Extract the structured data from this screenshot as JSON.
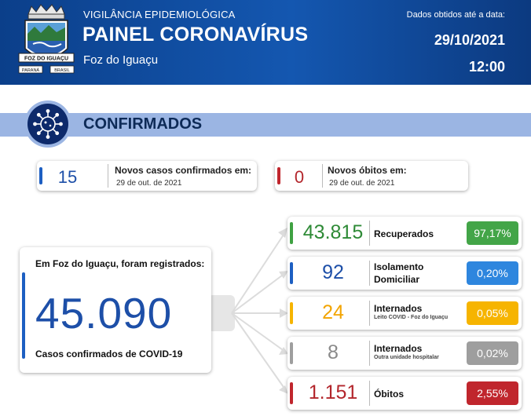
{
  "header": {
    "subtitle": "VIGILÂNCIA EPIDEMIOLÓGICA",
    "title": "PAINEL CORONAVÍRUS",
    "city": "Foz do Iguaçu",
    "date_label": "Dados obtidos até a data:",
    "date": "29/10/2021",
    "time": "12:00",
    "logo": {
      "banner": "FOZ DO IGUAÇU",
      "left": "PARANÁ",
      "right": "BRASIL"
    }
  },
  "section": {
    "title": "CONFIRMADOS",
    "icon": "virus-icon"
  },
  "new_cases": {
    "value": "15",
    "label": "Novos casos confirmados em:",
    "date": "29 de out. de 2021",
    "color": "#1d5fc2"
  },
  "new_deaths": {
    "value": "0",
    "label": "Novos óbitos em:",
    "date": "29 de out. de 2021",
    "color": "#c0262d"
  },
  "total": {
    "lead": "Em Foz do Iguaçu, foram registrados:",
    "value": "45.090",
    "footer": "Casos confirmados de COVID-19",
    "color": "#1d5fc2"
  },
  "breakdown": [
    {
      "value": "43.815",
      "label": "Recuperados",
      "label2": "",
      "sublabel": "",
      "pct": "97,17%",
      "color": "#3fa142",
      "value_color": "#2e8a36",
      "pct_color": "#43a548"
    },
    {
      "value": "92",
      "label": "Isolamento",
      "label2": "Domiciliar",
      "sublabel": "",
      "pct": "0,20%",
      "color": "#1d5fc2",
      "value_color": "#1d4fa8",
      "pct_color": "#2e86de"
    },
    {
      "value": "24",
      "label": "Internados",
      "label2": "",
      "sublabel": "Leito COVID - Foz do Iguaçu",
      "pct": "0,05%",
      "color": "#f6b400",
      "value_color": "#f2a400",
      "pct_color": "#f6b400"
    },
    {
      "value": "8",
      "label": "Internados",
      "label2": "",
      "sublabel": "Outra unidade hospitalar",
      "pct": "0,02%",
      "color": "#9e9e9e",
      "value_color": "#8a8a8a",
      "pct_color": "#9e9e9e"
    },
    {
      "value": "1.151",
      "label": "Óbitos",
      "label2": "",
      "sublabel": "",
      "pct": "2,55%",
      "color": "#c0262d",
      "value_color": "#b3262c",
      "pct_color": "#c0262d"
    }
  ]
}
